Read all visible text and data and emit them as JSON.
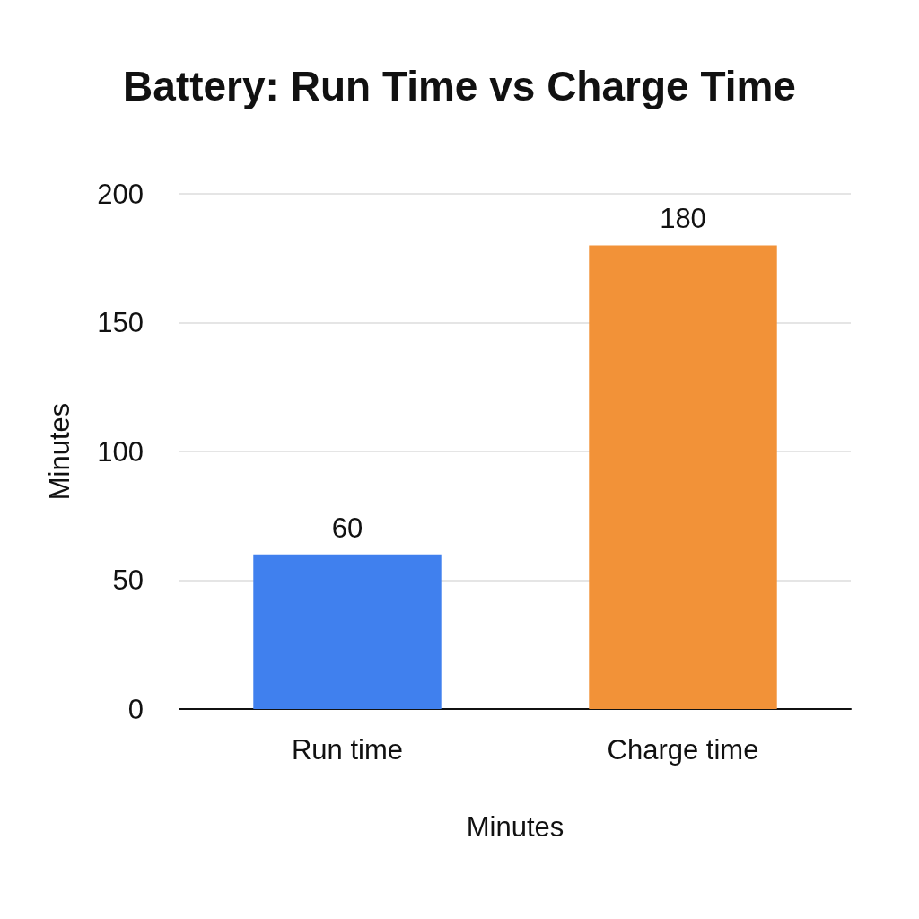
{
  "chart_data": {
    "type": "bar",
    "title": "Battery: Run Time vs Charge Time",
    "xlabel": "Minutes",
    "ylabel": "Minutes",
    "categories": [
      "Run time",
      "Charge time"
    ],
    "values": [
      60,
      180
    ],
    "colors": [
      "#4080ee",
      "#f29238"
    ],
    "ylim": [
      0,
      200
    ],
    "yticks": [
      0,
      50,
      100,
      150,
      200
    ],
    "grid": "y",
    "data_labels": true
  }
}
